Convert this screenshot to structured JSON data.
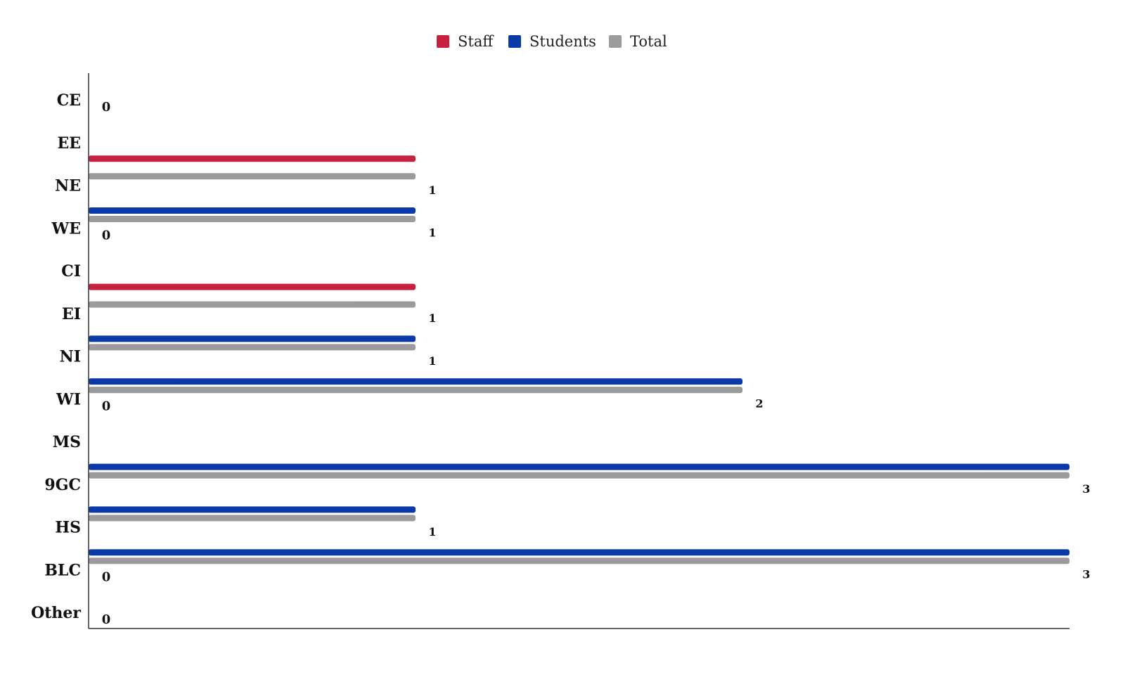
{
  "chart_data": {
    "type": "bar",
    "orientation": "horizontal",
    "categories": [
      "CE",
      "EE",
      "NE",
      "WE",
      "CI",
      "EI",
      "NI",
      "WI",
      "MS",
      "9GC",
      "HS",
      "BLC",
      "Other"
    ],
    "series": [
      {
        "name": "Staff",
        "color": "#c8203f",
        "values": [
          0,
          1,
          0,
          0,
          1,
          0,
          0,
          0,
          0,
          0,
          0,
          0,
          0
        ]
      },
      {
        "name": "Students",
        "color": "#0a3aa8",
        "values": [
          0,
          0,
          1,
          0,
          0,
          1,
          2,
          0,
          3,
          1,
          3,
          0,
          0
        ]
      },
      {
        "name": "Total",
        "color": "#9b9b9b",
        "values": [
          0,
          1,
          1,
          0,
          1,
          1,
          2,
          0,
          3,
          1,
          3,
          0,
          0
        ]
      }
    ],
    "data_labels": [
      "0",
      "1",
      "1",
      "0",
      "1",
      "1",
      "2",
      "0",
      "3",
      "1",
      "3",
      "0",
      "0"
    ],
    "xlim": [
      0,
      3
    ],
    "grid": false,
    "legend": "top-center",
    "title": "",
    "xlabel": "",
    "ylabel": ""
  }
}
